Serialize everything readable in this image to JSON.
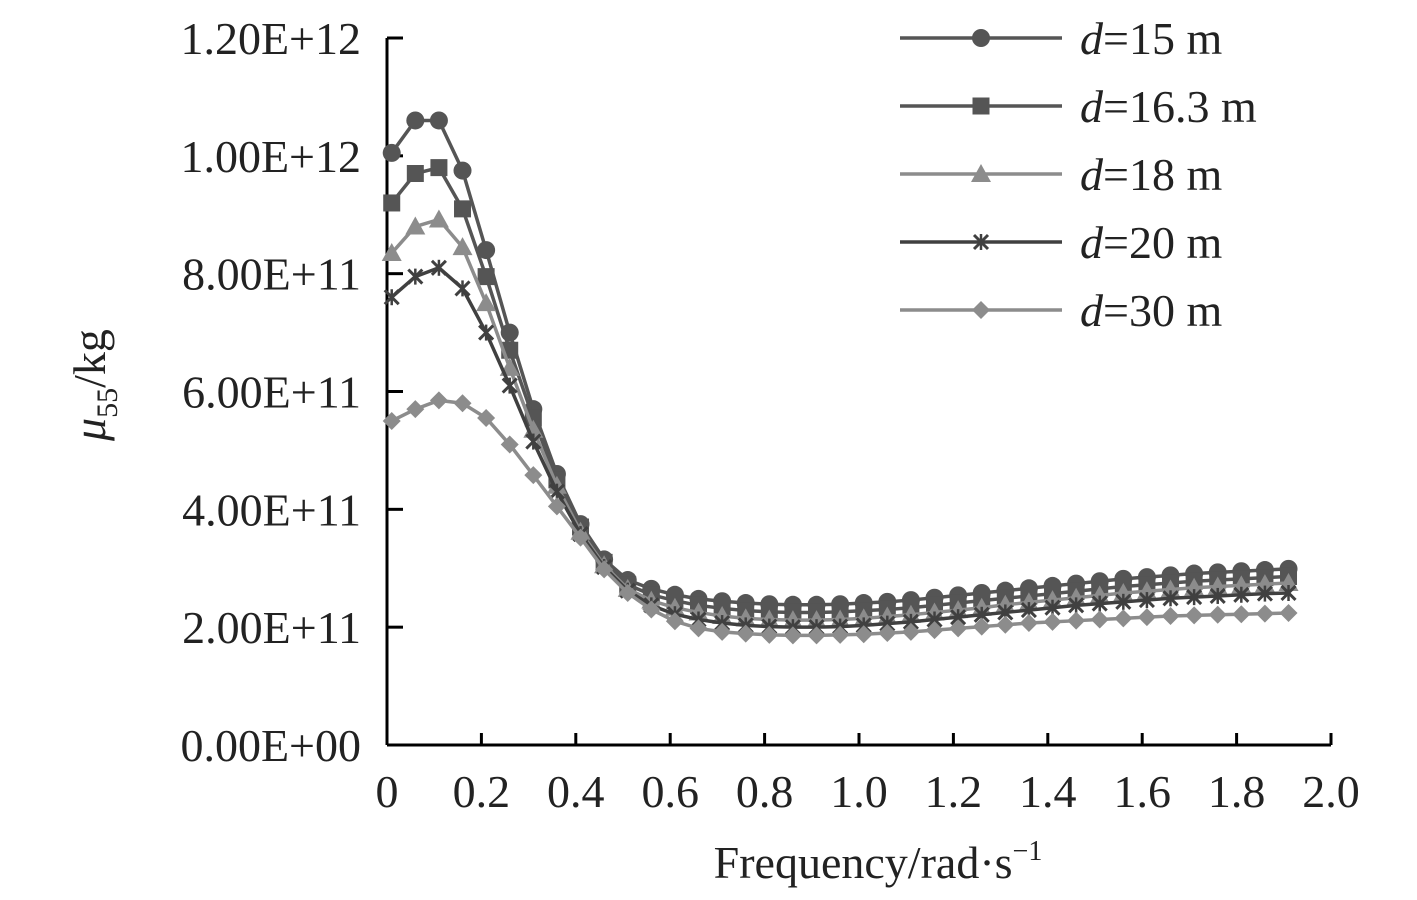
{
  "chart_data": {
    "type": "line",
    "xlabel": "Frequency/rad·s",
    "xlabel_sup": "−1",
    "ylabel_mu": "μ",
    "ylabel_sub": "55",
    "ylabel_unit": "/kg",
    "xlim": [
      0,
      2.0
    ],
    "ylim": [
      0,
      1200000000000.0
    ],
    "x_tick_labels": [
      "0",
      "0.2",
      "0.4",
      "0.6",
      "0.8",
      "1.0",
      "1.2",
      "1.4",
      "1.6",
      "1.8",
      "2.0"
    ],
    "x_tick_values": [
      0,
      0.2,
      0.4,
      0.6,
      0.8,
      1.0,
      1.2,
      1.4,
      1.6,
      1.8,
      2.0
    ],
    "y_tick_labels": [
      "0.00E+00",
      "2.00E+11",
      "4.00E+11",
      "6.00E+11",
      "8.00E+11",
      "1.00E+12",
      "1.20E+12"
    ],
    "y_tick_values": [
      0,
      200000000000.0,
      400000000000.0,
      600000000000.0,
      800000000000.0,
      1000000000000.0,
      1200000000000.0
    ],
    "grid": false,
    "legend_position": "top-right",
    "x": [
      0.01,
      0.06,
      0.11,
      0.16,
      0.21,
      0.26,
      0.31,
      0.36,
      0.41,
      0.46,
      0.51,
      0.56,
      0.61,
      0.66,
      0.71,
      0.76,
      0.81,
      0.86,
      0.91,
      0.96,
      1.01,
      1.06,
      1.11,
      1.16,
      1.21,
      1.26,
      1.31,
      1.36,
      1.41,
      1.46,
      1.51,
      1.56,
      1.61,
      1.66,
      1.71,
      1.76,
      1.81,
      1.86,
      1.91
    ],
    "series": [
      {
        "name_italic": "d",
        "name_rest": "=15 m",
        "marker": "circle",
        "color": "#555555",
        "values": [
          1005000000000.0,
          1060000000000.0,
          1060000000000.0,
          975000000000.0,
          840000000000.0,
          700000000000.0,
          570000000000.0,
          460000000000.0,
          375000000000.0,
          315000000000.0,
          280000000000.0,
          265000000000.0,
          255000000000.0,
          248000000000.0,
          244000000000.0,
          241000000000.0,
          239000000000.0,
          238000000000.0,
          238000000000.0,
          239000000000.0,
          241000000000.0,
          243000000000.0,
          246000000000.0,
          250000000000.0,
          254000000000.0,
          258000000000.0,
          262000000000.0,
          266000000000.0,
          270000000000.0,
          274000000000.0,
          278000000000.0,
          282000000000.0,
          285000000000.0,
          288000000000.0,
          291000000000.0,
          293000000000.0,
          295000000000.0,
          297000000000.0,
          299000000000.0
        ]
      },
      {
        "name_italic": "d",
        "name_rest": "=16.3 m",
        "marker": "square",
        "color": "#555555",
        "values": [
          920000000000.0,
          970000000000.0,
          980000000000.0,
          910000000000.0,
          795000000000.0,
          670000000000.0,
          555000000000.0,
          450000000000.0,
          370000000000.0,
          310000000000.0,
          272000000000.0,
          255000000000.0,
          245000000000.0,
          237000000000.0,
          232000000000.0,
          228000000000.0,
          226000000000.0,
          225000000000.0,
          225000000000.0,
          226000000000.0,
          228000000000.0,
          230000000000.0,
          233000000000.0,
          237000000000.0,
          241000000000.0,
          245000000000.0,
          249000000000.0,
          253000000000.0,
          257000000000.0,
          261000000000.0,
          265000000000.0,
          269000000000.0,
          272000000000.0,
          275000000000.0,
          278000000000.0,
          280000000000.0,
          282000000000.0,
          284000000000.0,
          286000000000.0
        ]
      },
      {
        "name_italic": "d",
        "name_rest": "=18 m",
        "marker": "triangle",
        "color": "#8c8c8c",
        "values": [
          835000000000.0,
          880000000000.0,
          892000000000.0,
          845000000000.0,
          750000000000.0,
          640000000000.0,
          535000000000.0,
          440000000000.0,
          362000000000.0,
          305000000000.0,
          265000000000.0,
          245000000000.0,
          233000000000.0,
          225000000000.0,
          219000000000.0,
          215000000000.0,
          213000000000.0,
          212000000000.0,
          212000000000.0,
          213000000000.0,
          215000000000.0,
          218000000000.0,
          221000000000.0,
          225000000000.0,
          229000000000.0,
          233000000000.0,
          238000000000.0,
          242000000000.0,
          246000000000.0,
          250000000000.0,
          254000000000.0,
          258000000000.0,
          261000000000.0,
          264000000000.0,
          267000000000.0,
          269000000000.0,
          271000000000.0,
          273000000000.0,
          275000000000.0
        ]
      },
      {
        "name_italic": "d",
        "name_rest": "=20 m",
        "marker": "star",
        "color": "#404040",
        "values": [
          760000000000.0,
          795000000000.0,
          810000000000.0,
          775000000000.0,
          700000000000.0,
          610000000000.0,
          515000000000.0,
          430000000000.0,
          358000000000.0,
          302000000000.0,
          262000000000.0,
          237000000000.0,
          222000000000.0,
          213000000000.0,
          207000000000.0,
          203000000000.0,
          201000000000.0,
          200000000000.0,
          200000000000.0,
          201000000000.0,
          203000000000.0,
          206000000000.0,
          209000000000.0,
          213000000000.0,
          217000000000.0,
          221000000000.0,
          225000000000.0,
          229000000000.0,
          233000000000.0,
          237000000000.0,
          240000000000.0,
          243000000000.0,
          246000000000.0,
          249000000000.0,
          251000000000.0,
          253000000000.0,
          255000000000.0,
          257000000000.0,
          258000000000.0
        ]
      },
      {
        "name_italic": "d",
        "name_rest": "=30 m",
        "marker": "diamond",
        "color": "#8c8c8c",
        "values": [
          550000000000.0,
          570000000000.0,
          585000000000.0,
          580000000000.0,
          555000000000.0,
          510000000000.0,
          458000000000.0,
          405000000000.0,
          352000000000.0,
          298000000000.0,
          258000000000.0,
          230000000000.0,
          210000000000.0,
          198000000000.0,
          192000000000.0,
          189000000000.0,
          187000000000.0,
          186000000000.0,
          186000000000.0,
          187000000000.0,
          188000000000.0,
          190000000000.0,
          192000000000.0,
          195000000000.0,
          198000000000.0,
          201000000000.0,
          204000000000.0,
          207000000000.0,
          209000000000.0,
          211000000000.0,
          213000000000.0,
          215000000000.0,
          217000000000.0,
          219000000000.0,
          220000000000.0,
          221000000000.0,
          222000000000.0,
          223000000000.0,
          224000000000.0
        ]
      }
    ]
  }
}
